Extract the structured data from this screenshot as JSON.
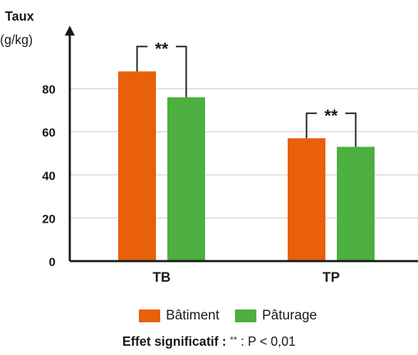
{
  "chart_data": {
    "type": "bar",
    "ylabel_title": "Taux",
    "ylabel_unit": "(g/kg)",
    "categories": [
      "TB",
      "TP"
    ],
    "series": [
      {
        "name": "Bâtiment",
        "color": "#e8610a",
        "values": [
          88,
          57
        ]
      },
      {
        "name": "Pâturage",
        "color": "#4caf3f",
        "values": [
          76,
          53
        ]
      }
    ],
    "yticks": [
      0,
      20,
      40,
      60,
      80
    ],
    "ylim": [
      0,
      100
    ],
    "grid": true,
    "significance": [
      {
        "category": "TB",
        "label": "**"
      },
      {
        "category": "TP",
        "label": "**"
      }
    ],
    "legend_position": "bottom"
  },
  "footnote": {
    "label": "Effet significatif :",
    "stars": "**",
    "text": " : P < 0,01"
  }
}
